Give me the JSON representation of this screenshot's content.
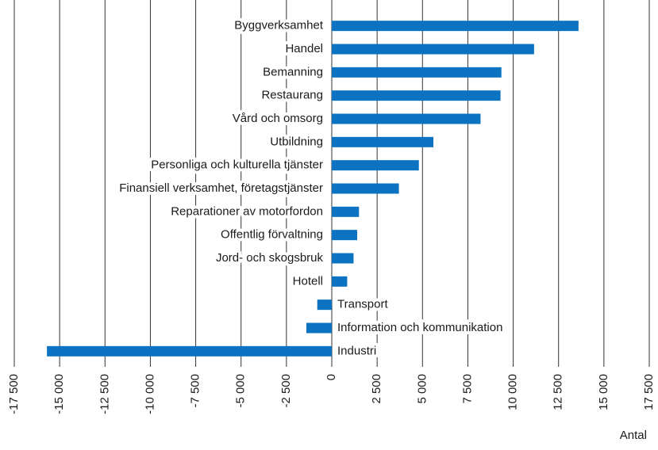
{
  "chart_data": {
    "type": "barh",
    "categories": [
      "Byggverksamhet",
      "Handel",
      "Bemanning",
      "Restaurang",
      "Vård och omsorg",
      "Utbildning",
      "Personliga och kulturella tjänster",
      "Finansiell verksamhet, företagstjänster",
      "Reparationer av motorfordon",
      "Offentlig förvaltning",
      "Jord- och skogsbruk",
      "Hotell",
      "Transport",
      "Information och kommunikation",
      "Industri"
    ],
    "values": [
      13600,
      11150,
      9350,
      9300,
      8200,
      5600,
      4800,
      3700,
      1500,
      1400,
      1200,
      850,
      -800,
      -1400,
      -15700
    ],
    "color": "#0b73c2",
    "xlim": [
      -17500,
      17500
    ],
    "xticks": [
      {
        "value": -17500,
        "label": "-17 500"
      },
      {
        "value": -15000,
        "label": "-15 000"
      },
      {
        "value": -12500,
        "label": "-12 500"
      },
      {
        "value": -10000,
        "label": "-10 000"
      },
      {
        "value": -7500,
        "label": "-7 500"
      },
      {
        "value": -5000,
        "label": "-5 000"
      },
      {
        "value": -2500,
        "label": "-2 500"
      },
      0,
      {
        "value": 2500,
        "label": "2 500"
      },
      {
        "value": 5000,
        "label": "5 000"
      },
      {
        "value": 7500,
        "label": "7 500"
      },
      {
        "value": 10000,
        "label": "10 000"
      },
      {
        "value": 12500,
        "label": "12 500"
      },
      {
        "value": 15000,
        "label": "15 000"
      },
      {
        "value": 17500,
        "label": "17 500"
      }
    ],
    "xlabel": "Antal",
    "grid": true
  }
}
